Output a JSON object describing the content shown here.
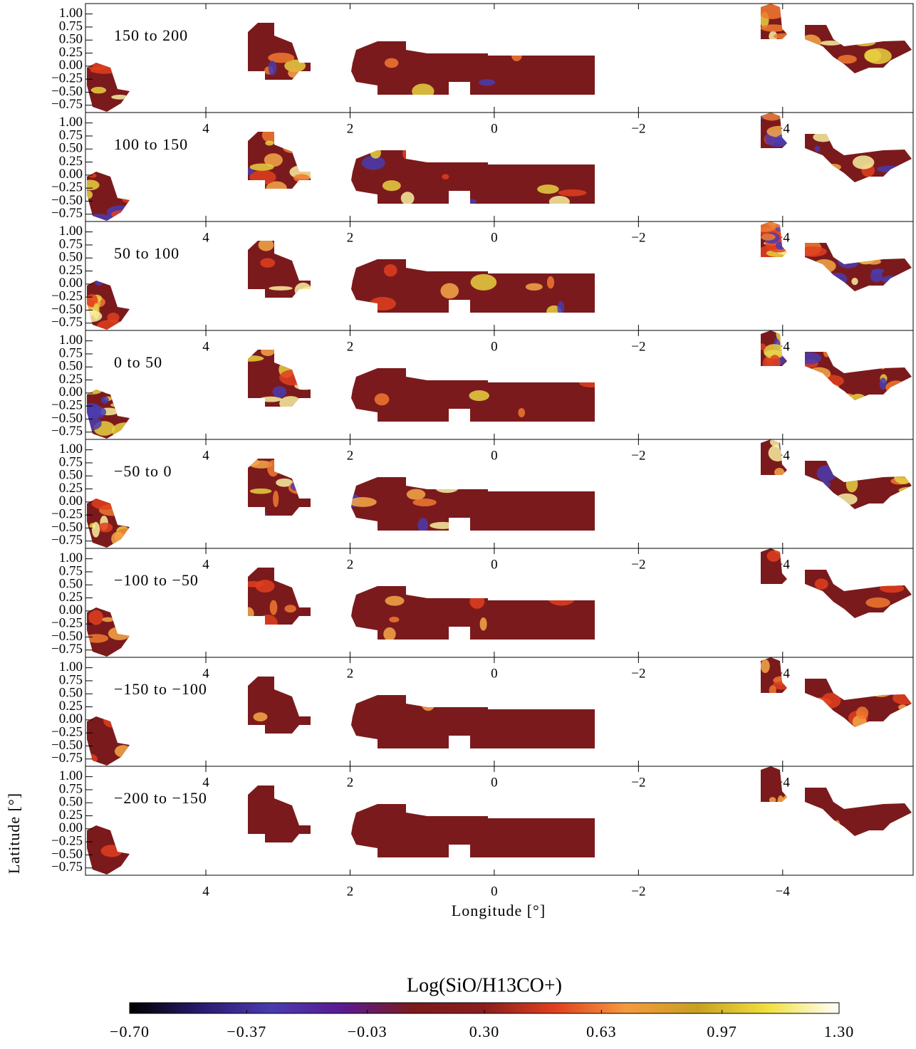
{
  "chart_data": {
    "type": "map-panels",
    "xlabel": "Longitude [°]",
    "ylabel": "Latitude [°]",
    "xlim": [
      5.67,
      -5.81
    ],
    "ylim": [
      -0.89,
      1.2
    ],
    "xticks": [
      4,
      2,
      0,
      {
        "value": -2,
        "label": "−2"
      },
      {
        "value": -4,
        "label": "−4"
      }
    ],
    "yticks": [
      {
        "value": 1,
        "label": "1.00"
      },
      {
        "value": 0.75,
        "label": "0.75"
      },
      {
        "value": 0.5,
        "label": "0.50"
      },
      {
        "value": 0.25,
        "label": "0.25"
      },
      {
        "value": 0,
        "label": "0.00"
      },
      {
        "value": -0.25,
        "label": "−0.25"
      },
      {
        "value": -0.5,
        "label": "−0.50"
      },
      {
        "value": -0.75,
        "label": "−0.75"
      }
    ],
    "panels": [
      "150 to 200",
      "100 to 150",
      "50 to 100",
      "0 to 50",
      "−50 to 0",
      "−100 to −50",
      "−150 to −100",
      "−200 to −150"
    ],
    "map_color": "#7b1a1c",
    "colorbar": {
      "title": "Log(SiO/H13CO+)",
      "clim": [
        -0.7,
        1.3
      ],
      "ticks": [
        {
          "value": -0.7,
          "label": "−0.70"
        },
        {
          "value": -0.37,
          "label": "−0.37"
        },
        {
          "value": -0.03,
          "label": "−0.03"
        },
        {
          "value": 0.3,
          "label": "0.30"
        },
        {
          "value": 0.63,
          "label": "0.63"
        },
        {
          "value": 0.97,
          "label": "0.97"
        },
        {
          "value": 1.3,
          "label": "1.30"
        }
      ],
      "colormap": [
        "#000000",
        "#2a1a6e",
        "#4a3cb0",
        "#5a1a90",
        "#7b1a1c",
        "#8a1e1e",
        "#e0401e",
        "#f59a40",
        "#c8a020",
        "#f0e040",
        "#ffffff"
      ]
    }
  }
}
